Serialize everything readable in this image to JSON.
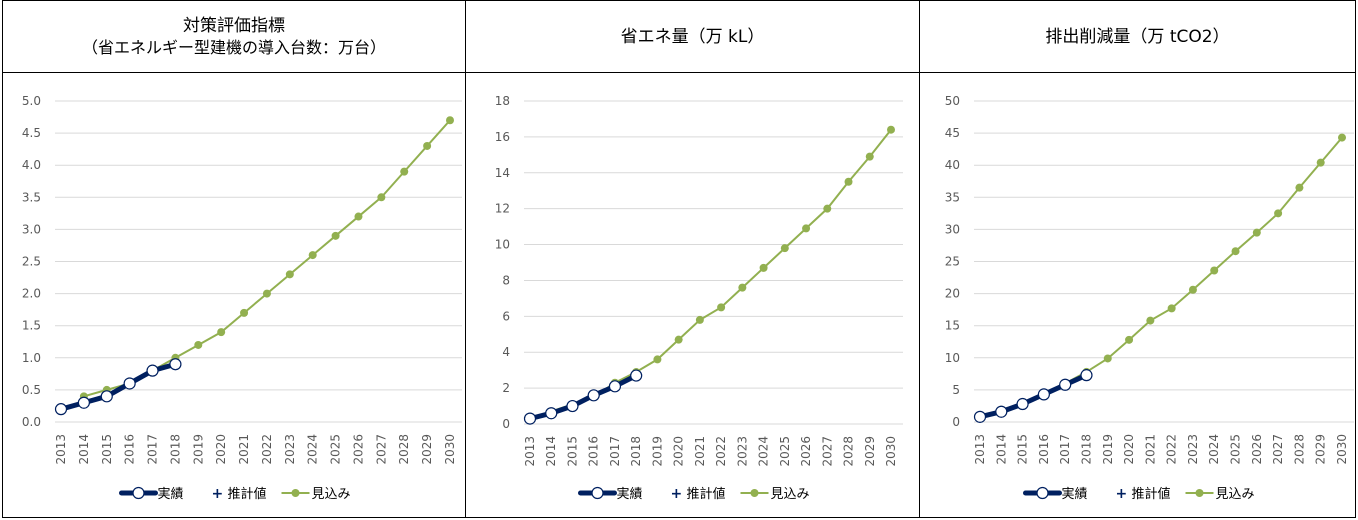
{
  "legend": {
    "actual": "実績",
    "estimate": "推計値",
    "forecast": "見込み"
  },
  "colors": {
    "actual": "#002060",
    "forecast": "#92b050",
    "grid": "#d9d9d9",
    "axis_text": "#595959"
  },
  "chart_data": [
    {
      "type": "line",
      "title": "対策評価指標",
      "subtitle": "（省エネルギー型建機の導入台数：万台）",
      "ylim": [
        0,
        5
      ],
      "yticks": [
        "0.0",
        "0.5",
        "1.0",
        "1.5",
        "2.0",
        "2.5",
        "3.0",
        "3.5",
        "4.0",
        "4.5",
        "5.0"
      ],
      "x": [
        "2013",
        "2014",
        "2015",
        "2016",
        "2017",
        "2018",
        "2019",
        "2020",
        "2021",
        "2022",
        "2023",
        "2024",
        "2025",
        "2026",
        "2027",
        "2028",
        "2029",
        "2030"
      ],
      "grid": true,
      "legend_position": "bottom",
      "series": [
        {
          "name": "実績",
          "x": [
            "2013",
            "2014",
            "2015",
            "2016",
            "2017",
            "2018"
          ],
          "values": [
            0.2,
            0.3,
            0.4,
            0.6,
            0.8,
            0.9
          ]
        },
        {
          "name": "推計値",
          "x": [],
          "values": []
        },
        {
          "name": "見込み",
          "x": [
            "2014",
            "2015",
            "2016",
            "2017",
            "2018",
            "2019",
            "2020",
            "2021",
            "2022",
            "2023",
            "2024",
            "2025",
            "2026",
            "2027",
            "2028",
            "2029",
            "2030"
          ],
          "values": [
            0.4,
            0.5,
            0.6,
            0.8,
            1.0,
            1.2,
            1.4,
            1.7,
            2.0,
            2.3,
            2.6,
            2.9,
            3.2,
            3.5,
            3.9,
            4.3,
            4.7
          ]
        }
      ]
    },
    {
      "type": "line",
      "title": "省エネ量（万 kL）",
      "ylim": [
        0,
        18
      ],
      "yticks": [
        "0",
        "2",
        "4",
        "6",
        "8",
        "10",
        "12",
        "14",
        "16",
        "18"
      ],
      "x": [
        "2013",
        "2014",
        "2015",
        "2016",
        "2017",
        "2018",
        "2019",
        "2020",
        "2021",
        "2022",
        "2023",
        "2024",
        "2025",
        "2026",
        "2027",
        "2028",
        "2029",
        "2030"
      ],
      "grid": true,
      "legend_position": "bottom",
      "series": [
        {
          "name": "実績",
          "x": [
            "2013",
            "2014",
            "2015",
            "2016",
            "2017",
            "2018"
          ],
          "values": [
            0.3,
            0.6,
            1.0,
            1.6,
            2.1,
            2.7
          ]
        },
        {
          "name": "推計値",
          "x": [],
          "values": []
        },
        {
          "name": "見込み",
          "x": [
            "2014",
            "2015",
            "2016",
            "2017",
            "2018",
            "2019",
            "2020",
            "2021",
            "2022",
            "2023",
            "2024",
            "2025",
            "2026",
            "2027",
            "2028",
            "2029",
            "2030"
          ],
          "values": [
            0.7,
            1.1,
            1.5,
            2.3,
            2.9,
            3.6,
            4.7,
            5.8,
            6.5,
            7.6,
            8.7,
            9.8,
            10.9,
            12.0,
            13.5,
            14.9,
            16.4
          ]
        }
      ]
    },
    {
      "type": "line",
      "title": "排出削減量（万 tCO2）",
      "ylim": [
        0,
        50
      ],
      "yticks": [
        "0",
        "5",
        "10",
        "15",
        "20",
        "25",
        "30",
        "35",
        "40",
        "45",
        "50"
      ],
      "x": [
        "2013",
        "2014",
        "2015",
        "2016",
        "2017",
        "2018",
        "2019",
        "2020",
        "2021",
        "2022",
        "2023",
        "2024",
        "2025",
        "2026",
        "2027",
        "2028",
        "2029",
        "2030"
      ],
      "grid": true,
      "legend_position": "bottom",
      "series": [
        {
          "name": "実績",
          "x": [
            "2013",
            "2014",
            "2015",
            "2016",
            "2017",
            "2018"
          ],
          "values": [
            0.8,
            1.6,
            2.8,
            4.3,
            5.8,
            7.3
          ]
        },
        {
          "name": "推計値",
          "x": [],
          "values": []
        },
        {
          "name": "見込み",
          "x": [
            "2014",
            "2015",
            "2016",
            "2017",
            "2018",
            "2019",
            "2020",
            "2021",
            "2022",
            "2023",
            "2024",
            "2025",
            "2026",
            "2027",
            "2028",
            "2029",
            "2030"
          ],
          "values": [
            1.9,
            2.9,
            4.0,
            6.0,
            7.8,
            9.9,
            12.8,
            15.8,
            17.7,
            20.6,
            23.6,
            26.6,
            29.5,
            32.5,
            36.5,
            40.4,
            44.3
          ]
        }
      ]
    }
  ]
}
